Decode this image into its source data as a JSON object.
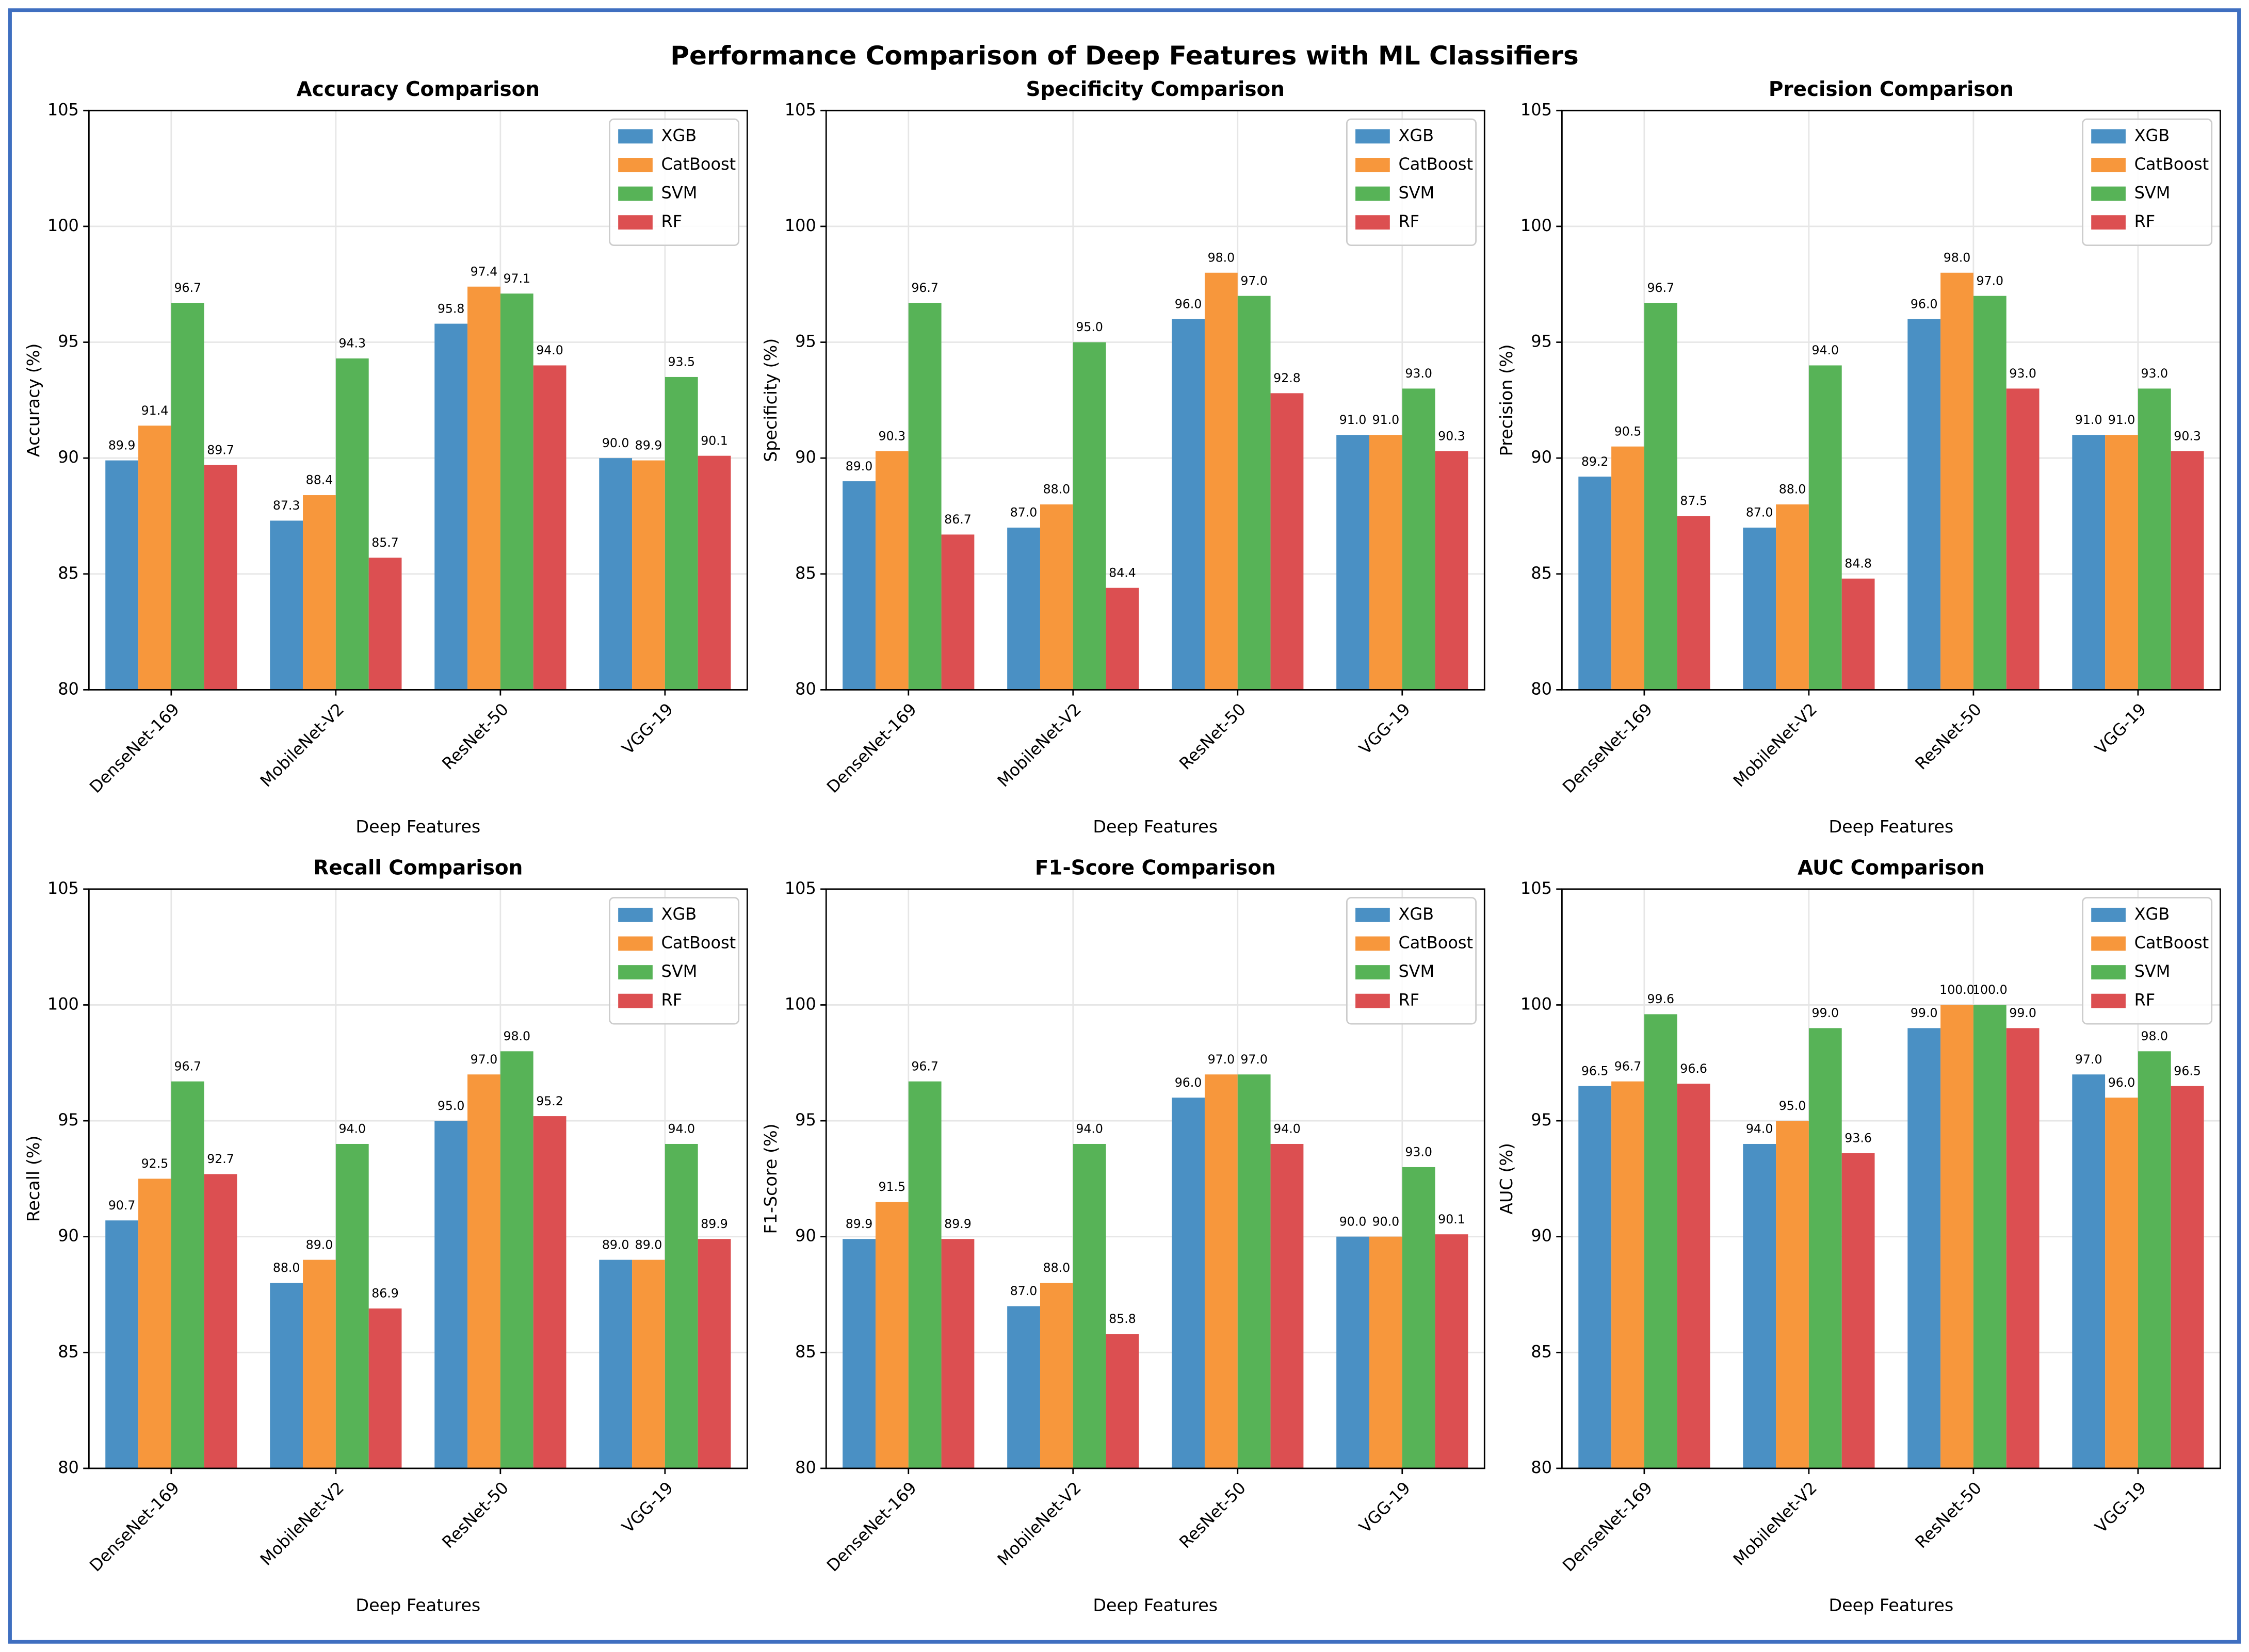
{
  "title": "Performance Comparison of Deep Features with ML Classifiers",
  "chart_data": [
    {
      "type": "bar",
      "title": "Accuracy Comparison",
      "x_label": "Deep Features",
      "y_label": "Accuracy (%)",
      "categories": [
        "DenseNet-169",
        "MobileNet-V2",
        "ResNet-50",
        "VGG-19"
      ],
      "series": [
        {
          "name": "XGB",
          "color": "#4a90c4",
          "values": [
            89.9,
            87.3,
            95.8,
            90.0
          ],
          "value_labels": [
            "89.9",
            "87.3",
            "95.8",
            "90.0"
          ]
        },
        {
          "name": "CatBoost",
          "color": "#f7973c",
          "values": [
            91.4,
            88.4,
            97.4,
            89.9
          ],
          "value_labels": [
            "91.4",
            "88.4",
            "97.4",
            "89.9"
          ]
        },
        {
          "name": "SVM",
          "color": "#57b357",
          "values": [
            96.7,
            94.3,
            97.1,
            93.5
          ],
          "value_labels": [
            "96.7",
            "94.3",
            "97.1",
            "93.5"
          ]
        },
        {
          "name": "RF",
          "color": "#dc4f51",
          "values": [
            89.7,
            85.7,
            94.0,
            90.1
          ],
          "value_labels": [
            "89.7",
            "85.7",
            "94.0",
            "90.1"
          ]
        }
      ],
      "ylim": [
        80,
        105
      ],
      "yticks": [
        80,
        85,
        90,
        95,
        100,
        105
      ],
      "grid": true,
      "legend": "upper right"
    },
    {
      "type": "bar",
      "title": "Specificity Comparison",
      "x_label": "Deep Features",
      "y_label": "Specificity (%)",
      "categories": [
        "DenseNet-169",
        "MobileNet-V2",
        "ResNet-50",
        "VGG-19"
      ],
      "series": [
        {
          "name": "XGB",
          "color": "#4a90c4",
          "values": [
            89.0,
            87.0,
            96.0,
            91.0
          ],
          "value_labels": [
            "89.0",
            "87.0",
            "96.0",
            "91.0"
          ]
        },
        {
          "name": "CatBoost",
          "color": "#f7973c",
          "values": [
            90.3,
            88.0,
            98.0,
            91.0
          ],
          "value_labels": [
            "90.3",
            "88.0",
            "98.0",
            "91.0"
          ]
        },
        {
          "name": "SVM",
          "color": "#57b357",
          "values": [
            96.7,
            95.0,
            97.0,
            93.0
          ],
          "value_labels": [
            "96.7",
            "95.0",
            "97.0",
            "93.0"
          ]
        },
        {
          "name": "RF",
          "color": "#dc4f51",
          "values": [
            86.7,
            84.4,
            92.8,
            90.3
          ],
          "value_labels": [
            "86.7",
            "84.4",
            "92.8",
            "90.3"
          ]
        }
      ],
      "ylim": [
        80,
        105
      ],
      "yticks": [
        80,
        85,
        90,
        95,
        100,
        105
      ],
      "grid": true,
      "legend": "upper right"
    },
    {
      "type": "bar",
      "title": "Precision Comparison",
      "x_label": "Deep Features",
      "y_label": "Precision (%)",
      "categories": [
        "DenseNet-169",
        "MobileNet-V2",
        "ResNet-50",
        "VGG-19"
      ],
      "series": [
        {
          "name": "XGB",
          "color": "#4a90c4",
          "values": [
            89.2,
            87.0,
            96.0,
            91.0
          ],
          "value_labels": [
            "89.2",
            "87.0",
            "96.0",
            "91.0"
          ]
        },
        {
          "name": "CatBoost",
          "color": "#f7973c",
          "values": [
            90.5,
            88.0,
            98.0,
            91.0
          ],
          "value_labels": [
            "90.5",
            "88.0",
            "98.0",
            "91.0"
          ]
        },
        {
          "name": "SVM",
          "color": "#57b357",
          "values": [
            96.7,
            94.0,
            97.0,
            93.0
          ],
          "value_labels": [
            "96.7",
            "94.0",
            "97.0",
            "93.0"
          ]
        },
        {
          "name": "RF",
          "color": "#dc4f51",
          "values": [
            87.5,
            84.8,
            93.0,
            90.3
          ],
          "value_labels": [
            "87.5",
            "84.8",
            "93.0",
            "90.3"
          ]
        }
      ],
      "ylim": [
        80,
        105
      ],
      "yticks": [
        80,
        85,
        90,
        95,
        100,
        105
      ],
      "grid": true,
      "legend": "upper right"
    },
    {
      "type": "bar",
      "title": "Recall Comparison",
      "x_label": "Deep Features",
      "y_label": "Recall (%)",
      "categories": [
        "DenseNet-169",
        "MobileNet-V2",
        "ResNet-50",
        "VGG-19"
      ],
      "series": [
        {
          "name": "XGB",
          "color": "#4a90c4",
          "values": [
            90.7,
            88.0,
            95.0,
            89.0
          ],
          "value_labels": [
            "90.7",
            "88.0",
            "95.0",
            "89.0"
          ]
        },
        {
          "name": "CatBoost",
          "color": "#f7973c",
          "values": [
            92.5,
            89.0,
            97.0,
            89.0
          ],
          "value_labels": [
            "92.5",
            "89.0",
            "97.0",
            "89.0"
          ]
        },
        {
          "name": "SVM",
          "color": "#57b357",
          "values": [
            96.7,
            94.0,
            98.0,
            94.0
          ],
          "value_labels": [
            "96.7",
            "94.0",
            "98.0",
            "94.0"
          ]
        },
        {
          "name": "RF",
          "color": "#dc4f51",
          "values": [
            92.7,
            86.9,
            95.2,
            89.9
          ],
          "value_labels": [
            "92.7",
            "86.9",
            "95.2",
            "89.9"
          ]
        }
      ],
      "ylim": [
        80,
        105
      ],
      "yticks": [
        80,
        85,
        90,
        95,
        100,
        105
      ],
      "grid": true,
      "legend": "upper right"
    },
    {
      "type": "bar",
      "title": "F1-Score Comparison",
      "x_label": "Deep Features",
      "y_label": "F1-Score (%)",
      "categories": [
        "DenseNet-169",
        "MobileNet-V2",
        "ResNet-50",
        "VGG-19"
      ],
      "series": [
        {
          "name": "XGB",
          "color": "#4a90c4",
          "values": [
            89.9,
            87.0,
            96.0,
            90.0
          ],
          "value_labels": [
            "89.9",
            "87.0",
            "96.0",
            "90.0"
          ]
        },
        {
          "name": "CatBoost",
          "color": "#f7973c",
          "values": [
            91.5,
            88.0,
            97.0,
            90.0
          ],
          "value_labels": [
            "91.5",
            "88.0",
            "97.0",
            "90.0"
          ]
        },
        {
          "name": "SVM",
          "color": "#57b357",
          "values": [
            96.7,
            94.0,
            97.0,
            93.0
          ],
          "value_labels": [
            "96.7",
            "94.0",
            "97.0",
            "93.0"
          ]
        },
        {
          "name": "RF",
          "color": "#dc4f51",
          "values": [
            89.9,
            85.8,
            94.0,
            90.1
          ],
          "value_labels": [
            "89.9",
            "85.8",
            "94.0",
            "90.1"
          ]
        }
      ],
      "ylim": [
        80,
        105
      ],
      "yticks": [
        80,
        85,
        90,
        95,
        100,
        105
      ],
      "grid": true,
      "legend": "upper right"
    },
    {
      "type": "bar",
      "title": "AUC Comparison",
      "x_label": "Deep Features",
      "y_label": "AUC (%)",
      "categories": [
        "DenseNet-169",
        "MobileNet-V2",
        "ResNet-50",
        "VGG-19"
      ],
      "series": [
        {
          "name": "XGB",
          "color": "#4a90c4",
          "values": [
            96.5,
            94.0,
            99.0,
            97.0
          ],
          "value_labels": [
            "96.5",
            "94.0",
            "99.0",
            "97.0"
          ]
        },
        {
          "name": "CatBoost",
          "color": "#f7973c",
          "values": [
            96.7,
            95.0,
            100.0,
            96.0
          ],
          "value_labels": [
            "96.7",
            "95.0",
            "100.0",
            "96.0"
          ]
        },
        {
          "name": "SVM",
          "color": "#57b357",
          "values": [
            99.6,
            99.0,
            100.0,
            98.0
          ],
          "value_labels": [
            "99.6",
            "99.0",
            "100.0",
            "98.0"
          ]
        },
        {
          "name": "RF",
          "color": "#dc4f51",
          "values": [
            96.6,
            93.6,
            99.0,
            96.5
          ],
          "value_labels": [
            "96.6",
            "93.6",
            "99.0",
            "96.5"
          ]
        }
      ],
      "ylim": [
        80,
        105
      ],
      "yticks": [
        80,
        85,
        90,
        95,
        100,
        105
      ],
      "grid": true,
      "legend": "upper right"
    }
  ]
}
